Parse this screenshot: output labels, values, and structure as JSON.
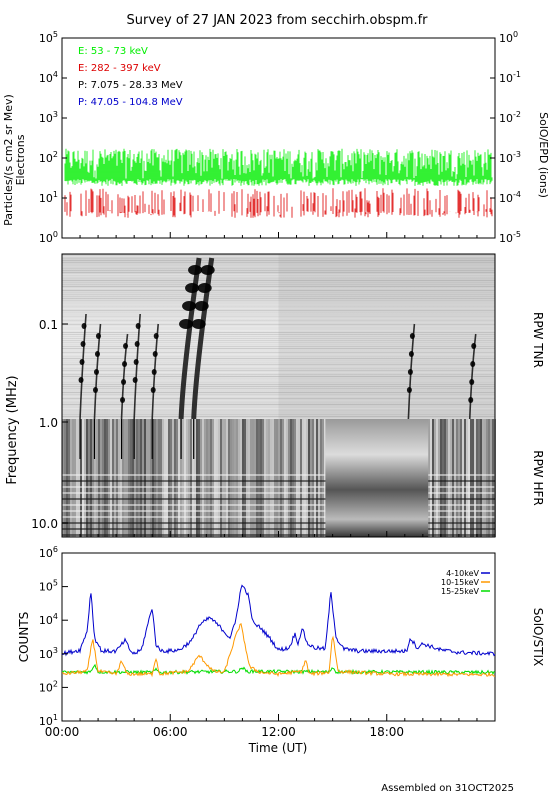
{
  "title": "Survey of 27 JAN 2023 from secchirh.obspm.fr",
  "footer": "Assembled on 31OCT2025",
  "chart_data": [
    {
      "type": "line",
      "panel": "particles",
      "ylabel": "Particles/(s cm2 sr Mev)",
      "ylabel2": "Electrons",
      "right_label": "SolO/EPD (ions)",
      "yscale": "log",
      "ylim": [
        1,
        100000
      ],
      "y_ticks": [
        "10^0",
        "10^1",
        "10^2",
        "10^3",
        "10^4",
        "10^5"
      ],
      "right_ylim": [
        1e-05,
        1
      ],
      "right_y_ticks": [
        "10^-5",
        "10^-4",
        "10^-3",
        "10^-2",
        "10^-1",
        "10^0"
      ],
      "legend_position": "top-left",
      "series": [
        {
          "name": "E: 53 - 73 keV",
          "color": "#00ee00",
          "typical": 50,
          "low": 25,
          "high": 140,
          "pattern": "continuous"
        },
        {
          "name": "E: 282 - 397 keV",
          "color": "#dd0000",
          "typical": 6,
          "low": 4,
          "high": 14,
          "pattern": "intermittent"
        },
        {
          "name": "P: 7.075 - 28.33 MeV",
          "color": "#000000",
          "typical": null,
          "pattern": "none"
        },
        {
          "name": "P: 47.05 - 104.8 MeV",
          "color": "#0000cc",
          "typical": null,
          "pattern": "none"
        }
      ]
    },
    {
      "type": "heatmap",
      "panel": "radio",
      "ylabel": "Frequency (MHz)",
      "y_ticks": [
        "0.1",
        "1.0",
        "10.0"
      ],
      "right_labels": [
        "RPW TNR",
        "RPW HFR"
      ],
      "yscale": "log",
      "colormap": "gray-inverted",
      "bursts_hours": [
        1.0,
        1.8,
        3.3,
        4.0,
        5.0,
        6.6,
        7.3,
        19.2,
        22.6
      ]
    },
    {
      "type": "line",
      "panel": "xray",
      "ylabel": "COUNTS",
      "right_label": "SolO/STIX",
      "yscale": "log",
      "ylim": [
        10,
        1000000
      ],
      "y_ticks": [
        "10^1",
        "10^2",
        "10^3",
        "10^4",
        "10^5",
        "10^6"
      ],
      "xlabel": "Time (UT)",
      "x_ticks": [
        "00:00",
        "06:00",
        "12:00",
        "18:00"
      ],
      "xlim": [
        0,
        24
      ],
      "legend_position": "top-right",
      "series": [
        {
          "name": "4-10keV",
          "color": "#0000cc",
          "x": [
            0,
            1.0,
            1.4,
            1.6,
            1.8,
            2.2,
            3.0,
            3.5,
            3.8,
            4.0,
            4.4,
            5.0,
            5.2,
            5.4,
            5.8,
            6.5,
            7.2,
            7.6,
            8.2,
            8.8,
            9.3,
            9.6,
            9.9,
            10.0,
            10.3,
            10.6,
            11.0,
            11.5,
            12.0,
            12.6,
            12.9,
            13.1,
            13.3,
            13.6,
            14.0,
            14.6,
            14.9,
            15.2,
            15.6,
            16.5,
            18.0,
            19.1,
            19.3,
            19.7,
            20.0,
            21.0,
            22.0,
            24.0
          ],
          "y": [
            1000,
            1300,
            5000,
            80000,
            3000,
            1200,
            1200,
            2500,
            1200,
            1000,
            1300,
            25000,
            2000,
            1300,
            1200,
            1300,
            2500,
            7000,
            12000,
            6000,
            3000,
            8000,
            80000,
            110000,
            60000,
            8000,
            6000,
            3000,
            1300,
            1500,
            4000,
            2000,
            6000,
            2000,
            1500,
            1400,
            70000,
            3000,
            1400,
            1200,
            1200,
            1200,
            3000,
            1500,
            2000,
            1300,
            1100,
            1000
          ]
        },
        {
          "name": "10-15keV",
          "color": "#ff9900",
          "x": [
            0,
            1.4,
            1.7,
            2.0,
            3.0,
            3.3,
            3.6,
            5.0,
            5.2,
            5.4,
            7.0,
            7.6,
            8.0,
            8.4,
            9.0,
            9.6,
            9.9,
            10.1,
            10.4,
            11.0,
            12.0,
            13.3,
            13.5,
            13.7,
            14.8,
            15.0,
            15.3,
            18.0,
            24.0
          ],
          "y": [
            250,
            300,
            3000,
            300,
            250,
            600,
            250,
            250,
            800,
            250,
            300,
            900,
            500,
            300,
            280,
            3000,
            8000,
            2500,
            400,
            280,
            250,
            300,
            700,
            250,
            280,
            4000,
            300,
            250,
            240
          ]
        },
        {
          "name": "15-25keV",
          "color": "#00dd00",
          "x": [
            0,
            1.6,
            1.8,
            2.0,
            5.0,
            5.2,
            5.4,
            9.8,
            10.0,
            10.2,
            14.8,
            15.0,
            15.2,
            24.0
          ],
          "y": [
            280,
            290,
            500,
            290,
            280,
            330,
            280,
            300,
            400,
            300,
            290,
            400,
            290,
            280
          ]
        }
      ]
    }
  ]
}
